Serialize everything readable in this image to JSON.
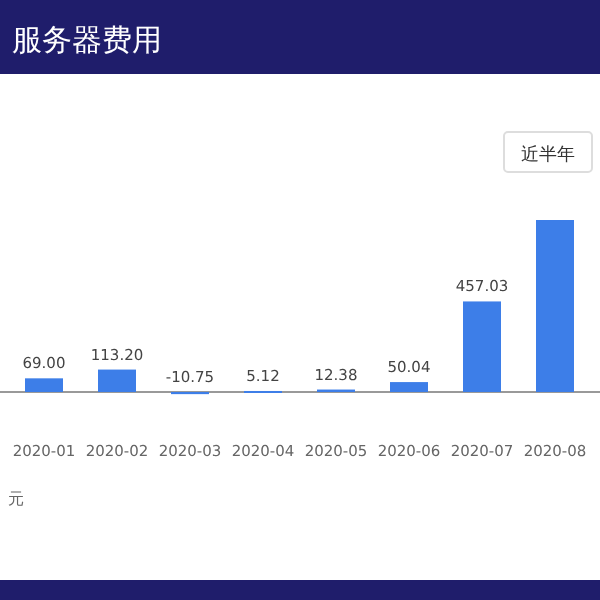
{
  "chart_data": {
    "type": "bar",
    "title": "服务器费用",
    "categories": [
      "2020-01",
      "2020-02",
      "2020-03",
      "2020-04",
      "2020-05",
      "2020-06",
      "2020-07",
      "2020-08"
    ],
    "values": [
      69.0,
      113.2,
      -10.75,
      5.12,
      12.38,
      50.04,
      457.03,
      868
    ],
    "value_labels": [
      "69.00",
      "113.20",
      "-10.75",
      "5.12",
      "12.38",
      "50.04",
      "457.03",
      null
    ],
    "color": "#3d7ee8",
    "annotations": [
      "近半年",
      "元"
    ]
  }
}
